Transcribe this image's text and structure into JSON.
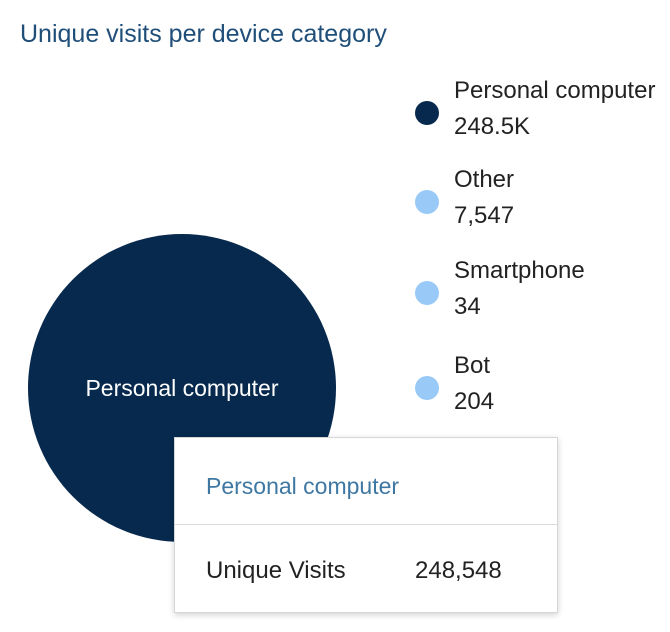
{
  "chart_data": {
    "type": "bubble",
    "title": "Unique visits per device category",
    "categories": [
      "Personal computer",
      "Other",
      "Smartphone",
      "Bot"
    ],
    "values": [
      248548,
      7547,
      34,
      204
    ],
    "value_labels": [
      "248.5K",
      "7,547",
      "34",
      "204"
    ],
    "colors": [
      "#06294d",
      "#99c9f6",
      "#99c9f6",
      "#99c9f6"
    ],
    "bubble_labels": [
      "Personal computer"
    ],
    "legend_position": "right"
  },
  "tooltip": {
    "title": "Personal computer",
    "metric_label": "Unique Visits",
    "metric_value": "248,548"
  }
}
